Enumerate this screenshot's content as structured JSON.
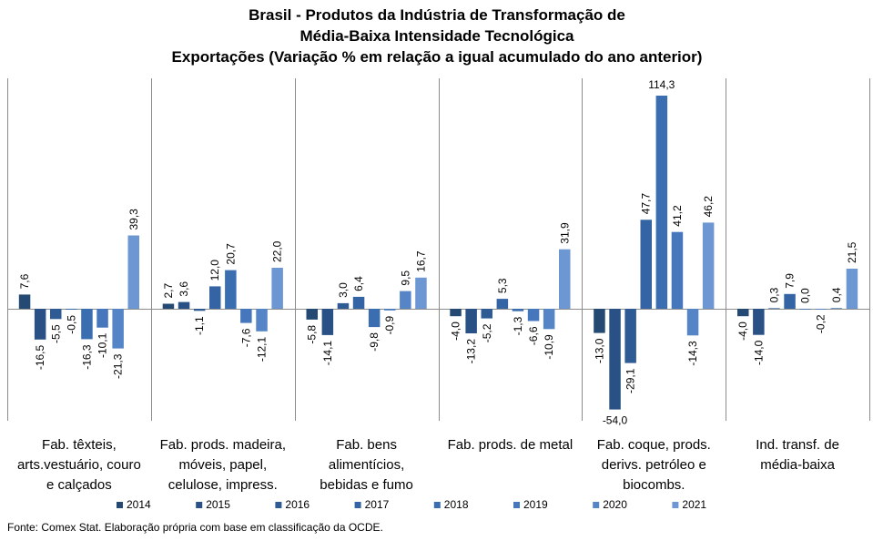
{
  "footer": {
    "source": "Fonte: Comex Stat. Elaboração própria com base em classificação da OCDE."
  },
  "chart_data": {
    "type": "bar",
    "title_lines": [
      "Brasil - Produtos da Indústria de Transformação de",
      "Média-Baixa Intensidade Tecnológica",
      "Exportações (Variação % em relação a igual acumulado do ano anterior)"
    ],
    "categories": [
      [
        "Fab. têxteis,",
        "arts.vestuário, couro",
        "e calçados"
      ],
      [
        "Fab. prods. madeira,",
        "móveis, papel,",
        "celulose, impress."
      ],
      [
        "Fab. bens",
        "alimentícios,",
        "bebidas e fumo"
      ],
      [
        "Fab. prods. de metal"
      ],
      [
        "Fab. coque, prods.",
        "derivs. petróleo e",
        "biocombs."
      ],
      [
        "Ind. transf. de",
        "média-baixa"
      ]
    ],
    "series": [
      {
        "name": "2014",
        "color": "#244a73",
        "values": [
          7.6,
          2.7,
          -5.8,
          -4.0,
          -13.0,
          -4.0
        ]
      },
      {
        "name": "2015",
        "color": "#2a5185",
        "values": [
          -16.5,
          3.6,
          -14.1,
          -13.2,
          -54.0,
          -14.0
        ]
      },
      {
        "name": "2016",
        "color": "#2f5b94",
        "values": [
          -5.5,
          -1.1,
          3.0,
          -5.2,
          -29.1,
          0.3
        ]
      },
      {
        "name": "2017",
        "color": "#3464a3",
        "values": [
          -0.5,
          12.0,
          6.4,
          5.3,
          47.7,
          7.9
        ]
      },
      {
        "name": "2018",
        "color": "#3a6eb0",
        "values": [
          -16.3,
          20.7,
          -9.8,
          -1.3,
          114.3,
          0.0
        ]
      },
      {
        "name": "2019",
        "color": "#4677bd",
        "values": [
          -10.1,
          -7.6,
          -0.9,
          -6.6,
          41.2,
          -0.2
        ]
      },
      {
        "name": "2020",
        "color": "#5585c7",
        "values": [
          -21.3,
          -12.1,
          9.5,
          -10.9,
          -14.3,
          0.4
        ]
      },
      {
        "name": "2021",
        "color": "#6d97d2",
        "values": [
          39.3,
          22.0,
          16.7,
          31.9,
          46.2,
          21.5
        ]
      }
    ],
    "value_labels": [
      [
        "7,6",
        "-16,5",
        "-5,5",
        "-0,5",
        "-16,3",
        "-10,1",
        "-21,3",
        "39,3"
      ],
      [
        "2,7",
        "3,6",
        "-1,1",
        "12,0",
        "20,7",
        "-7,6",
        "-12,1",
        "22,0"
      ],
      [
        "-5,8",
        "-14,1",
        "3,0",
        "6,4",
        "-9,8",
        "-0,9",
        "9,5",
        "16,7"
      ],
      [
        "-4,0",
        "-13,2",
        "-5,2",
        "5,3",
        "-1,3",
        "-6,6",
        "-10,9",
        "31,9"
      ],
      [
        "-13,0",
        "-54,0",
        "-29,1",
        "47,7",
        "114,3",
        "41,2",
        "-14,3",
        "46,2"
      ],
      [
        "-4,0",
        "-14,0",
        "0,3",
        "7,9",
        "0,0",
        "-0,2",
        "0,4",
        "21,5"
      ]
    ],
    "ylim": [
      -60,
      120
    ],
    "legend": {
      "position": "bottom"
    },
    "grid": false
  }
}
